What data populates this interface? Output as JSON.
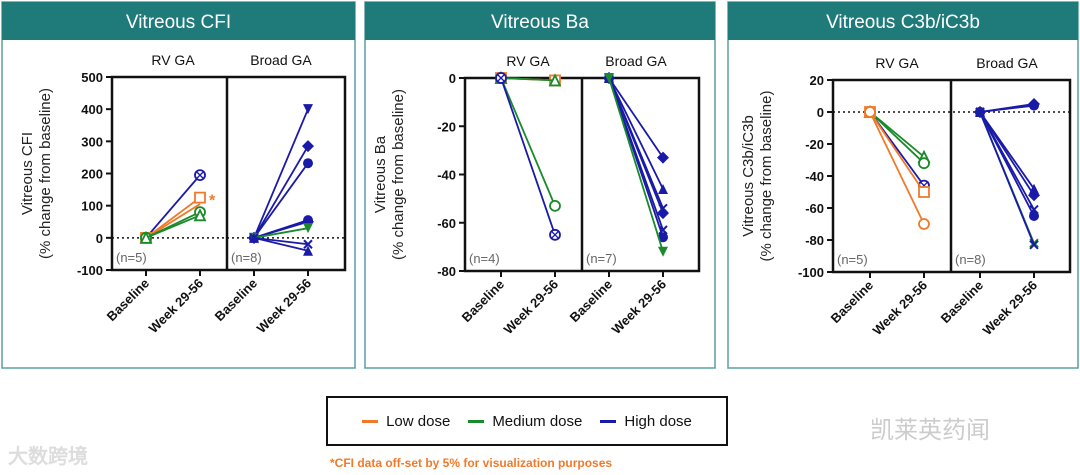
{
  "colors": {
    "low": "#f07a2a",
    "medium": "#1a8a2a",
    "high": "#1a1aa8",
    "header": "#1f7a7a"
  },
  "legend": {
    "low": "Low dose",
    "medium": "Medium dose",
    "high": "High dose"
  },
  "footnote": "*CFI data off-set by 5% for visualization purposes",
  "watermarks": {
    "left": "大数跨境",
    "right": "凯莱英药闻"
  },
  "chart_data": [
    {
      "type": "line",
      "title": "Vitreous CFI",
      "ylabel": "Vitreous CFI",
      "ylabel2": "(% change from baseline)",
      "ylim": [
        -100,
        500
      ],
      "yticks": [
        "500",
        "400",
        "300",
        "200",
        "100",
        "0",
        "-100"
      ],
      "yvals": [
        500,
        400,
        300,
        200,
        100,
        0,
        -100
      ],
      "zero_line": true,
      "groups": [
        {
          "name": "RV GA",
          "n": "(n=5)",
          "annotation": "*"
        },
        {
          "name": "Broad GA",
          "n": "(n=8)"
        }
      ],
      "xticks": [
        "Baseline",
        "Week 29-56"
      ],
      "series": [
        {
          "group": 0,
          "dose": "high",
          "marker": "circlex",
          "values": [
            0,
            195
          ]
        },
        {
          "group": 0,
          "dose": "low",
          "marker": "square",
          "values": [
            0,
            125
          ]
        },
        {
          "group": 0,
          "dose": "low",
          "marker": "none",
          "values": [
            0,
            105
          ]
        },
        {
          "group": 0,
          "dose": "medium",
          "marker": "circle",
          "values": [
            0,
            80
          ]
        },
        {
          "group": 0,
          "dose": "medium",
          "marker": "triangle",
          "values": [
            0,
            70
          ]
        },
        {
          "group": 1,
          "dose": "high",
          "marker": "tridown",
          "values": [
            0,
            400
          ]
        },
        {
          "group": 1,
          "dose": "high",
          "marker": "diamond",
          "values": [
            0,
            285
          ]
        },
        {
          "group": 1,
          "dose": "high",
          "marker": "dot",
          "values": [
            0,
            232
          ]
        },
        {
          "group": 1,
          "dose": "high",
          "marker": "dot",
          "values": [
            0,
            55
          ]
        },
        {
          "group": 1,
          "dose": "high",
          "marker": "diamond",
          "values": [
            0,
            50
          ]
        },
        {
          "group": 1,
          "dose": "medium",
          "marker": "tridown",
          "values": [
            0,
            30
          ]
        },
        {
          "group": 1,
          "dose": "high",
          "marker": "x",
          "values": [
            0,
            -20
          ]
        },
        {
          "group": 1,
          "dose": "high",
          "marker": "trifill",
          "values": [
            0,
            -40
          ]
        }
      ]
    },
    {
      "type": "line",
      "title": "Vitreous Ba",
      "ylabel": "Vitreous Ba",
      "ylabel2": "(% change from baseline)",
      "ylim": [
        -80,
        0
      ],
      "yticks": [
        "0",
        "-20",
        "-40",
        "-60",
        "-80"
      ],
      "yvals": [
        0,
        -20,
        -40,
        -60,
        -80
      ],
      "zero_line": false,
      "groups": [
        {
          "name": "RV GA",
          "n": "(n=4)"
        },
        {
          "name": "Broad GA",
          "n": "(n=7)"
        }
      ],
      "xticks": [
        "Baseline",
        "Week 29-56"
      ],
      "series": [
        {
          "group": 0,
          "dose": "low",
          "marker": "square",
          "values": [
            0,
            -1
          ]
        },
        {
          "group": 0,
          "dose": "medium",
          "marker": "triangle",
          "values": [
            0,
            -1
          ]
        },
        {
          "group": 0,
          "dose": "medium",
          "marker": "circle",
          "values": [
            0,
            -53
          ]
        },
        {
          "group": 0,
          "dose": "high",
          "marker": "circlex",
          "values": [
            0,
            -65
          ]
        },
        {
          "group": 1,
          "dose": "high",
          "marker": "diamond",
          "values": [
            0,
            -33
          ]
        },
        {
          "group": 1,
          "dose": "high",
          "marker": "trifill",
          "values": [
            0,
            -46
          ]
        },
        {
          "group": 1,
          "dose": "high",
          "marker": "x",
          "values": [
            0,
            -54
          ]
        },
        {
          "group": 1,
          "dose": "high",
          "marker": "diamond",
          "values": [
            0,
            -56
          ]
        },
        {
          "group": 1,
          "dose": "high",
          "marker": "x",
          "values": [
            0,
            -63
          ]
        },
        {
          "group": 1,
          "dose": "high",
          "marker": "dot",
          "values": [
            0,
            -66
          ]
        },
        {
          "group": 1,
          "dose": "medium",
          "marker": "tridown",
          "values": [
            0,
            -72
          ]
        }
      ]
    },
    {
      "type": "line",
      "title": "Vitreous C3b/iC3b",
      "ylabel": "Vitreous C3b/iC3b",
      "ylabel2": "(% change from baseline)",
      "ylim": [
        -100,
        20
      ],
      "yticks": [
        "20",
        "0",
        "-20",
        "-40",
        "-60",
        "-80",
        "-100"
      ],
      "yvals": [
        20,
        0,
        -20,
        -40,
        -60,
        -80,
        -100
      ],
      "zero_line": true,
      "groups": [
        {
          "name": "RV GA",
          "n": "(n=5)"
        },
        {
          "name": "Broad GA",
          "n": "(n=8)"
        }
      ],
      "xticks": [
        "Baseline",
        "Week 29-56"
      ],
      "series": [
        {
          "group": 0,
          "dose": "medium",
          "marker": "triangle",
          "values": [
            0,
            -28
          ]
        },
        {
          "group": 0,
          "dose": "medium",
          "marker": "circle",
          "values": [
            0,
            -32
          ]
        },
        {
          "group": 0,
          "dose": "high",
          "marker": "circlex",
          "values": [
            0,
            -46
          ]
        },
        {
          "group": 0,
          "dose": "low",
          "marker": "square",
          "values": [
            0,
            -50
          ]
        },
        {
          "group": 0,
          "dose": "low",
          "marker": "circle",
          "values": [
            0,
            -70
          ]
        },
        {
          "group": 1,
          "dose": "high",
          "marker": "diamond",
          "values": [
            0,
            5
          ]
        },
        {
          "group": 1,
          "dose": "high",
          "marker": "dot",
          "values": [
            0,
            4
          ]
        },
        {
          "group": 1,
          "dose": "high",
          "marker": "trifill",
          "values": [
            0,
            -48
          ]
        },
        {
          "group": 1,
          "dose": "high",
          "marker": "diamond",
          "values": [
            0,
            -52
          ]
        },
        {
          "group": 1,
          "dose": "high",
          "marker": "x",
          "values": [
            0,
            -61
          ]
        },
        {
          "group": 1,
          "dose": "high",
          "marker": "dot",
          "values": [
            0,
            -65
          ]
        },
        {
          "group": 1,
          "dose": "medium",
          "marker": "x",
          "values": [
            0,
            -82
          ]
        },
        {
          "group": 1,
          "dose": "high",
          "marker": "x",
          "values": [
            0,
            -83
          ]
        }
      ]
    }
  ]
}
